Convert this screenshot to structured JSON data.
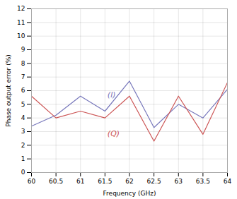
{
  "chart_data": {
    "type": "line",
    "x": [
      60,
      60.5,
      61,
      61.5,
      62,
      62.5,
      63,
      63.5,
      64
    ],
    "series": [
      {
        "color": "#7777bb",
        "values": [
          3.4,
          4.2,
          5.6,
          4.5,
          6.7,
          3.3,
          5.0,
          4.0,
          6.1
        ]
      },
      {
        "color": "#cc5555",
        "values": [
          5.6,
          4.0,
          4.5,
          4.0,
          5.6,
          2.3,
          5.6,
          2.8,
          6.6
        ]
      }
    ],
    "annotations": [
      {
        "text": "(I)",
        "x": 61.55,
        "y": 5.5,
        "color": "#7777bb"
      },
      {
        "text": "(Q)",
        "x": 61.55,
        "y": 3.05,
        "color": "#cc5555"
      }
    ],
    "x_label": "Frequency (GHz)",
    "y_label": "Phase output error (%)",
    "xlim": [
      60,
      64
    ],
    "ylim": [
      0,
      12
    ],
    "xticks": [
      60,
      60.5,
      61,
      61.5,
      62,
      62.5,
      63,
      63.5,
      64
    ],
    "yticks": [
      0,
      1,
      2,
      3,
      4,
      5,
      6,
      7,
      8,
      9,
      10,
      11,
      12
    ],
    "grid": true
  }
}
